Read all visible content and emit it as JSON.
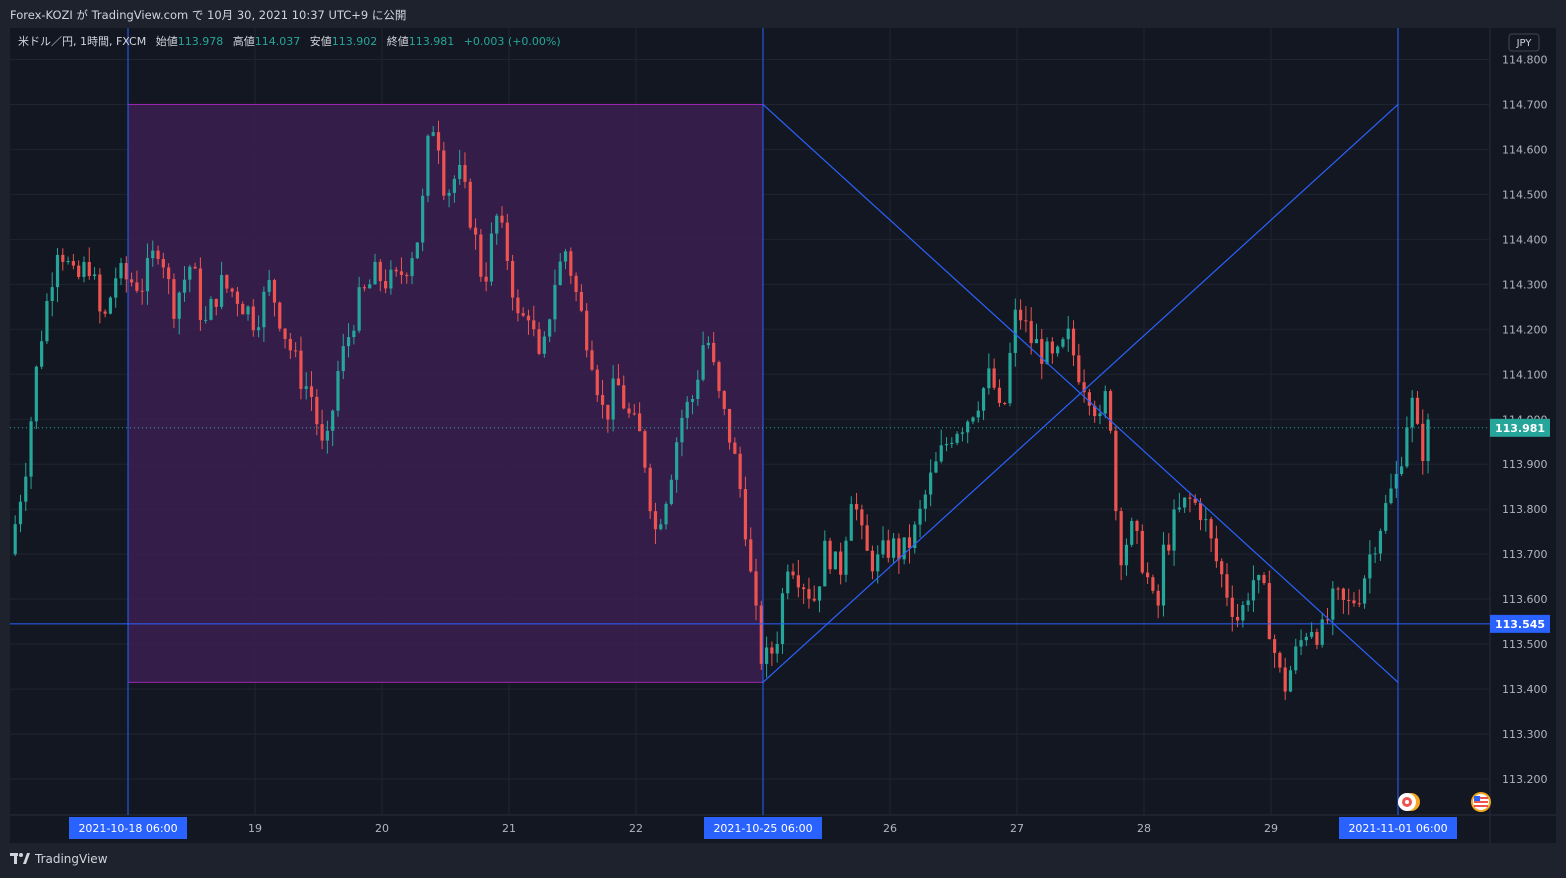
{
  "header": {
    "publish_line": "Forex-KOZI が TradingView.com で 10月 30, 2021 10:37 UTC+9 に公開"
  },
  "legend": {
    "symbol": "米ドル／円, 1時間, FXCM",
    "open_label": "始値",
    "open": "113.978",
    "high_label": "高値",
    "high": "114.037",
    "low_label": "安値",
    "low": "113.902",
    "close_label": "終値",
    "close": "113.981",
    "change": "+0.003 (+0.00%)"
  },
  "currency_badge": "JPY",
  "footer": {
    "brand": "TradingView"
  },
  "colors": {
    "up": "#26a69a",
    "down": "#ef5350",
    "line": "#2962ff",
    "rect_fill": "#3b2050",
    "rect_border": "#9c27b0",
    "price_tag": "#26a69a",
    "level_tag": "#2962ff"
  },
  "chart_data": {
    "type": "candlestick",
    "symbol": "USDJPY",
    "interval": "1h",
    "y_ticks": [
      "114.800",
      "114.700",
      "114.600",
      "114.500",
      "114.400",
      "114.300",
      "114.200",
      "114.100",
      "114.000",
      "113.900",
      "113.800",
      "113.700",
      "113.600",
      "113.500",
      "113.400",
      "113.300",
      "113.200"
    ],
    "ylim": [
      113.12,
      114.87
    ],
    "x_labels": [
      {
        "label": "2021-10-18   06:00",
        "day": 0,
        "highlight": true
      },
      {
        "label": "19",
        "day": 1
      },
      {
        "label": "20",
        "day": 2
      },
      {
        "label": "21",
        "day": 3
      },
      {
        "label": "22",
        "day": 4
      },
      {
        "label": "2021-10-25   06:00",
        "day": 5,
        "highlight": true
      },
      {
        "label": "26",
        "day": 6
      },
      {
        "label": "27",
        "day": 7
      },
      {
        "label": "28",
        "day": 8
      },
      {
        "label": "29",
        "day": 9
      },
      {
        "label": "2021-11-01   06:00",
        "day": 10,
        "highlight": true
      }
    ],
    "current_price": "113.981",
    "hline_price": "113.545",
    "vlines_day": [
      0,
      5,
      10
    ],
    "rectangle": {
      "from_day": 0,
      "to_day": 5,
      "top": 114.7,
      "bottom": 113.415
    },
    "diagonals": [
      {
        "from": [
          5,
          114.7
        ],
        "to": [
          10,
          113.415
        ]
      },
      {
        "from": [
          5,
          113.415
        ],
        "to": [
          10,
          114.7
        ]
      }
    ],
    "series": [
      {
        "day": -0.93,
        "close": 113.7
      },
      {
        "day": -0.8,
        "close": 113.91
      },
      {
        "day": -0.7,
        "close": 114.16
      },
      {
        "day": -0.55,
        "close": 114.4
      },
      {
        "day": -0.42,
        "close": 114.3
      },
      {
        "day": -0.3,
        "close": 114.35
      },
      {
        "day": -0.2,
        "close": 114.2
      },
      {
        "day": -0.1,
        "close": 114.32
      },
      {
        "day": 0.0,
        "close": 114.31
      },
      {
        "day": 0.12,
        "close": 114.3
      },
      {
        "day": 0.25,
        "close": 114.4
      },
      {
        "day": 0.35,
        "close": 114.25
      },
      {
        "day": 0.5,
        "close": 114.35
      },
      {
        "day": 0.6,
        "close": 114.2
      },
      {
        "day": 0.72,
        "close": 114.3
      },
      {
        "day": 0.85,
        "close": 114.28
      },
      {
        "day": 1.0,
        "close": 114.22
      },
      {
        "day": 1.12,
        "close": 114.3
      },
      {
        "day": 1.25,
        "close": 114.18
      },
      {
        "day": 1.35,
        "close": 114.1
      },
      {
        "day": 1.45,
        "close": 114.05
      },
      {
        "day": 1.55,
        "close": 113.9
      },
      {
        "day": 1.65,
        "close": 114.1
      },
      {
        "day": 1.8,
        "close": 114.25
      },
      {
        "day": 1.95,
        "close": 114.32
      },
      {
        "day": 2.1,
        "close": 114.3
      },
      {
        "day": 2.2,
        "close": 114.35
      },
      {
        "day": 2.3,
        "close": 114.42
      },
      {
        "day": 2.36,
        "close": 114.6
      },
      {
        "day": 2.42,
        "close": 114.68
      },
      {
        "day": 2.5,
        "close": 114.5
      },
      {
        "day": 2.6,
        "close": 114.55
      },
      {
        "day": 2.7,
        "close": 114.45
      },
      {
        "day": 2.8,
        "close": 114.3
      },
      {
        "day": 2.9,
        "close": 114.45
      },
      {
        "day": 3.0,
        "close": 114.35
      },
      {
        "day": 3.08,
        "close": 114.2
      },
      {
        "day": 3.15,
        "close": 114.25
      },
      {
        "day": 3.25,
        "close": 114.1
      },
      {
        "day": 3.35,
        "close": 114.3
      },
      {
        "day": 3.45,
        "close": 114.38
      },
      {
        "day": 3.55,
        "close": 114.25
      },
      {
        "day": 3.65,
        "close": 114.15
      },
      {
        "day": 3.75,
        "close": 114.0
      },
      {
        "day": 3.85,
        "close": 114.08
      },
      {
        "day": 3.95,
        "close": 114.0
      },
      {
        "day": 4.05,
        "close": 113.95
      },
      {
        "day": 4.15,
        "close": 113.75
      },
      {
        "day": 4.25,
        "close": 113.85
      },
      {
        "day": 4.35,
        "close": 114.0
      },
      {
        "day": 4.45,
        "close": 114.05
      },
      {
        "day": 4.55,
        "close": 114.2
      },
      {
        "day": 4.65,
        "close": 114.05
      },
      {
        "day": 4.75,
        "close": 113.95
      },
      {
        "day": 4.85,
        "close": 113.8
      },
      {
        "day": 4.92,
        "close": 113.6
      },
      {
        "day": 5.0,
        "close": 113.45
      },
      {
        "day": 5.1,
        "close": 113.5
      },
      {
        "day": 5.2,
        "close": 113.7
      },
      {
        "day": 5.3,
        "close": 113.65
      },
      {
        "day": 5.4,
        "close": 113.6
      },
      {
        "day": 5.5,
        "close": 113.72
      },
      {
        "day": 5.6,
        "close": 113.65
      },
      {
        "day": 5.7,
        "close": 113.85
      },
      {
        "day": 5.8,
        "close": 113.7
      },
      {
        "day": 5.9,
        "close": 113.68
      },
      {
        "day": 6.0,
        "close": 113.72
      },
      {
        "day": 6.1,
        "close": 113.7
      },
      {
        "day": 6.2,
        "close": 113.75
      },
      {
        "day": 6.3,
        "close": 113.85
      },
      {
        "day": 6.4,
        "close": 113.92
      },
      {
        "day": 6.5,
        "close": 113.98
      },
      {
        "day": 6.6,
        "close": 114.0
      },
      {
        "day": 6.7,
        "close": 114.05
      },
      {
        "day": 6.8,
        "close": 114.1
      },
      {
        "day": 6.88,
        "close": 113.98
      },
      {
        "day": 6.95,
        "close": 114.15
      },
      {
        "day": 7.0,
        "close": 114.25
      },
      {
        "day": 7.1,
        "close": 114.18
      },
      {
        "day": 7.2,
        "close": 114.15
      },
      {
        "day": 7.3,
        "close": 114.12
      },
      {
        "day": 7.4,
        "close": 114.18
      },
      {
        "day": 7.5,
        "close": 114.1
      },
      {
        "day": 7.6,
        "close": 114.05
      },
      {
        "day": 7.65,
        "close": 113.98
      },
      {
        "day": 7.72,
        "close": 114.08
      },
      {
        "day": 7.8,
        "close": 113.7
      },
      {
        "day": 7.9,
        "close": 113.75
      },
      {
        "day": 8.0,
        "close": 113.68
      },
      {
        "day": 8.1,
        "close": 113.55
      },
      {
        "day": 8.15,
        "close": 113.7
      },
      {
        "day": 8.25,
        "close": 113.78
      },
      {
        "day": 8.35,
        "close": 113.82
      },
      {
        "day": 8.45,
        "close": 113.8
      },
      {
        "day": 8.55,
        "close": 113.7
      },
      {
        "day": 8.65,
        "close": 113.62
      },
      {
        "day": 8.75,
        "close": 113.55
      },
      {
        "day": 8.85,
        "close": 113.65
      },
      {
        "day": 8.95,
        "close": 113.6
      },
      {
        "day": 9.05,
        "close": 113.45
      },
      {
        "day": 9.1,
        "close": 113.4
      },
      {
        "day": 9.2,
        "close": 113.48
      },
      {
        "day": 9.3,
        "close": 113.55
      },
      {
        "day": 9.4,
        "close": 113.52
      },
      {
        "day": 9.5,
        "close": 113.6
      },
      {
        "day": 9.6,
        "close": 113.58
      },
      {
        "day": 9.7,
        "close": 113.62
      },
      {
        "day": 9.8,
        "close": 113.72
      },
      {
        "day": 9.9,
        "close": 113.8
      },
      {
        "day": 10.0,
        "close": 113.88
      },
      {
        "day": 10.1,
        "close": 114.05
      },
      {
        "day": 10.18,
        "close": 113.92
      },
      {
        "day": 10.24,
        "close": 113.98
      }
    ]
  }
}
